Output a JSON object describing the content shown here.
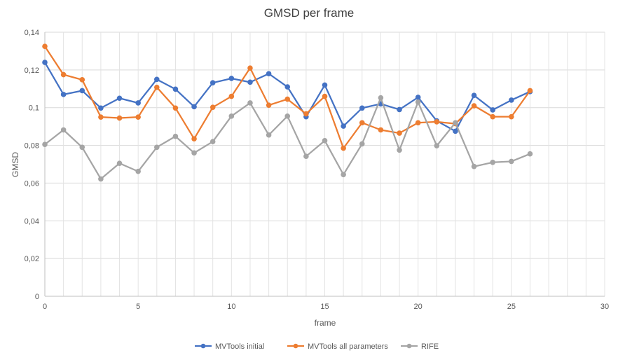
{
  "chart_data": {
    "type": "line",
    "title": "GMSD per frame",
    "xlabel": "frame",
    "ylabel": "GMSD",
    "xlim": [
      0,
      30
    ],
    "ylim": [
      0,
      0.14
    ],
    "x_ticks": [
      0,
      5,
      10,
      15,
      20,
      25,
      30
    ],
    "x_tick_labels": [
      "0",
      "5",
      "10",
      "15",
      "20",
      "25",
      "30"
    ],
    "y_ticks": [
      0,
      0.02,
      0.04,
      0.06,
      0.08,
      0.1,
      0.12,
      0.14
    ],
    "y_tick_labels": [
      "0",
      "0,02",
      "0,04",
      "0,06",
      "0,08",
      "0,1",
      "0,12",
      "0,14"
    ],
    "grid": "both",
    "legend_position": "bottom",
    "x": [
      0,
      1,
      2,
      3,
      4,
      5,
      6,
      7,
      8,
      9,
      10,
      11,
      12,
      13,
      14,
      15,
      16,
      17,
      18,
      19,
      20,
      21,
      22,
      23,
      24,
      25,
      26
    ],
    "series": [
      {
        "name": "MVTools initial",
        "color": "#4472C4",
        "values": [
          0.124,
          0.107,
          0.109,
          0.0998,
          0.105,
          0.1025,
          0.115,
          0.1098,
          0.1005,
          0.1132,
          0.1155,
          0.1135,
          0.118,
          0.111,
          0.0952,
          0.112,
          0.0902,
          0.0998,
          0.102,
          0.099,
          0.1055,
          0.093,
          0.0875,
          0.1065,
          0.0988,
          0.104,
          0.1085
        ]
      },
      {
        "name": "MVTools all parameters",
        "color": "#ED7D31",
        "values": [
          0.1325,
          0.1175,
          0.1148,
          0.095,
          0.0945,
          0.095,
          0.1108,
          0.0998,
          0.0835,
          0.1002,
          0.106,
          0.121,
          0.1013,
          0.1045,
          0.0967,
          0.106,
          0.0785,
          0.092,
          0.0882,
          0.0865,
          0.092,
          0.0925,
          0.0915,
          0.101,
          0.0952,
          0.0952,
          0.109
        ]
      },
      {
        "name": "RIFE",
        "color": "#A5A5A5",
        "values": [
          0.0805,
          0.0882,
          0.079,
          0.0622,
          0.0705,
          0.0662,
          0.079,
          0.0848,
          0.076,
          0.082,
          0.0955,
          0.1025,
          0.0855,
          0.0955,
          0.0742,
          0.0825,
          0.0645,
          0.0808,
          0.1052,
          0.0775,
          0.103,
          0.0798,
          0.092,
          0.0688,
          0.071,
          0.0715,
          0.0755
        ]
      }
    ]
  }
}
